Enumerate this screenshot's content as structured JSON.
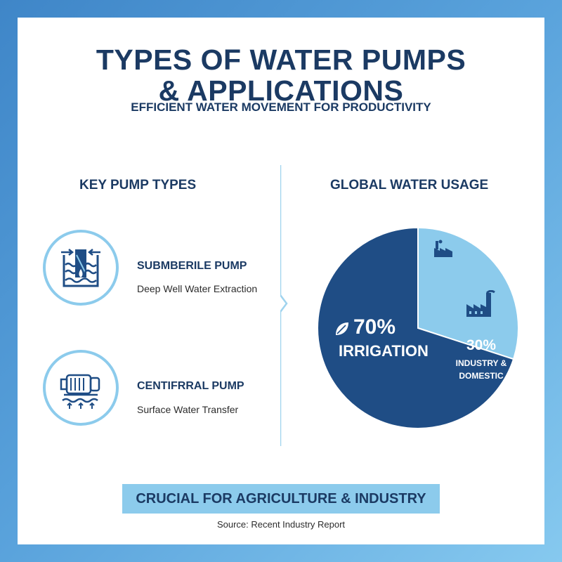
{
  "header": {
    "title_line1": "TYPES OF WATER PUMPS",
    "title_line2": "& APPLICATIONS",
    "subtitle": "EFFICIENT WATER MOVEMENT FOR PRODUCTIVITY"
  },
  "pumps": {
    "heading": "KEY PUMP TYPES",
    "items": [
      {
        "name": "SUBMBERILE PUMP",
        "description": "Deep Well Water Extraction",
        "icon": "submersible-pump-icon"
      },
      {
        "name": "CENTIFRRAL PUMP",
        "description": "Surface Water Transfer",
        "icon": "centrifugal-pump-icon"
      }
    ]
  },
  "usage": {
    "heading": "GLOBAL WATER USAGE",
    "irrigation_pct": "70%",
    "irrigation_label": "IRRIGATION",
    "industry_pct": "30%",
    "industry_label_line1": "INDUSTRY &",
    "industry_label_line2": "DOMESTIC"
  },
  "chart_data": {
    "type": "pie",
    "categories": [
      "IRRIGATION",
      "INDUSTRY & DOMESTIC"
    ],
    "values": [
      70,
      30
    ],
    "title": "GLOBAL WATER USAGE",
    "colors": [
      "#1f4d85",
      "#8ccbec"
    ]
  },
  "footer": {
    "banner": "CRUCIAL FOR AGRICULTURE & INDUSTRY",
    "source": "Source: Recent Industry Report"
  },
  "colors": {
    "navy": "#1b3a63",
    "pie_dark": "#1f4d85",
    "light_blue": "#8ccbec",
    "background_gradient_start": "#3f86c8",
    "background_gradient_end": "#86c9ef"
  }
}
